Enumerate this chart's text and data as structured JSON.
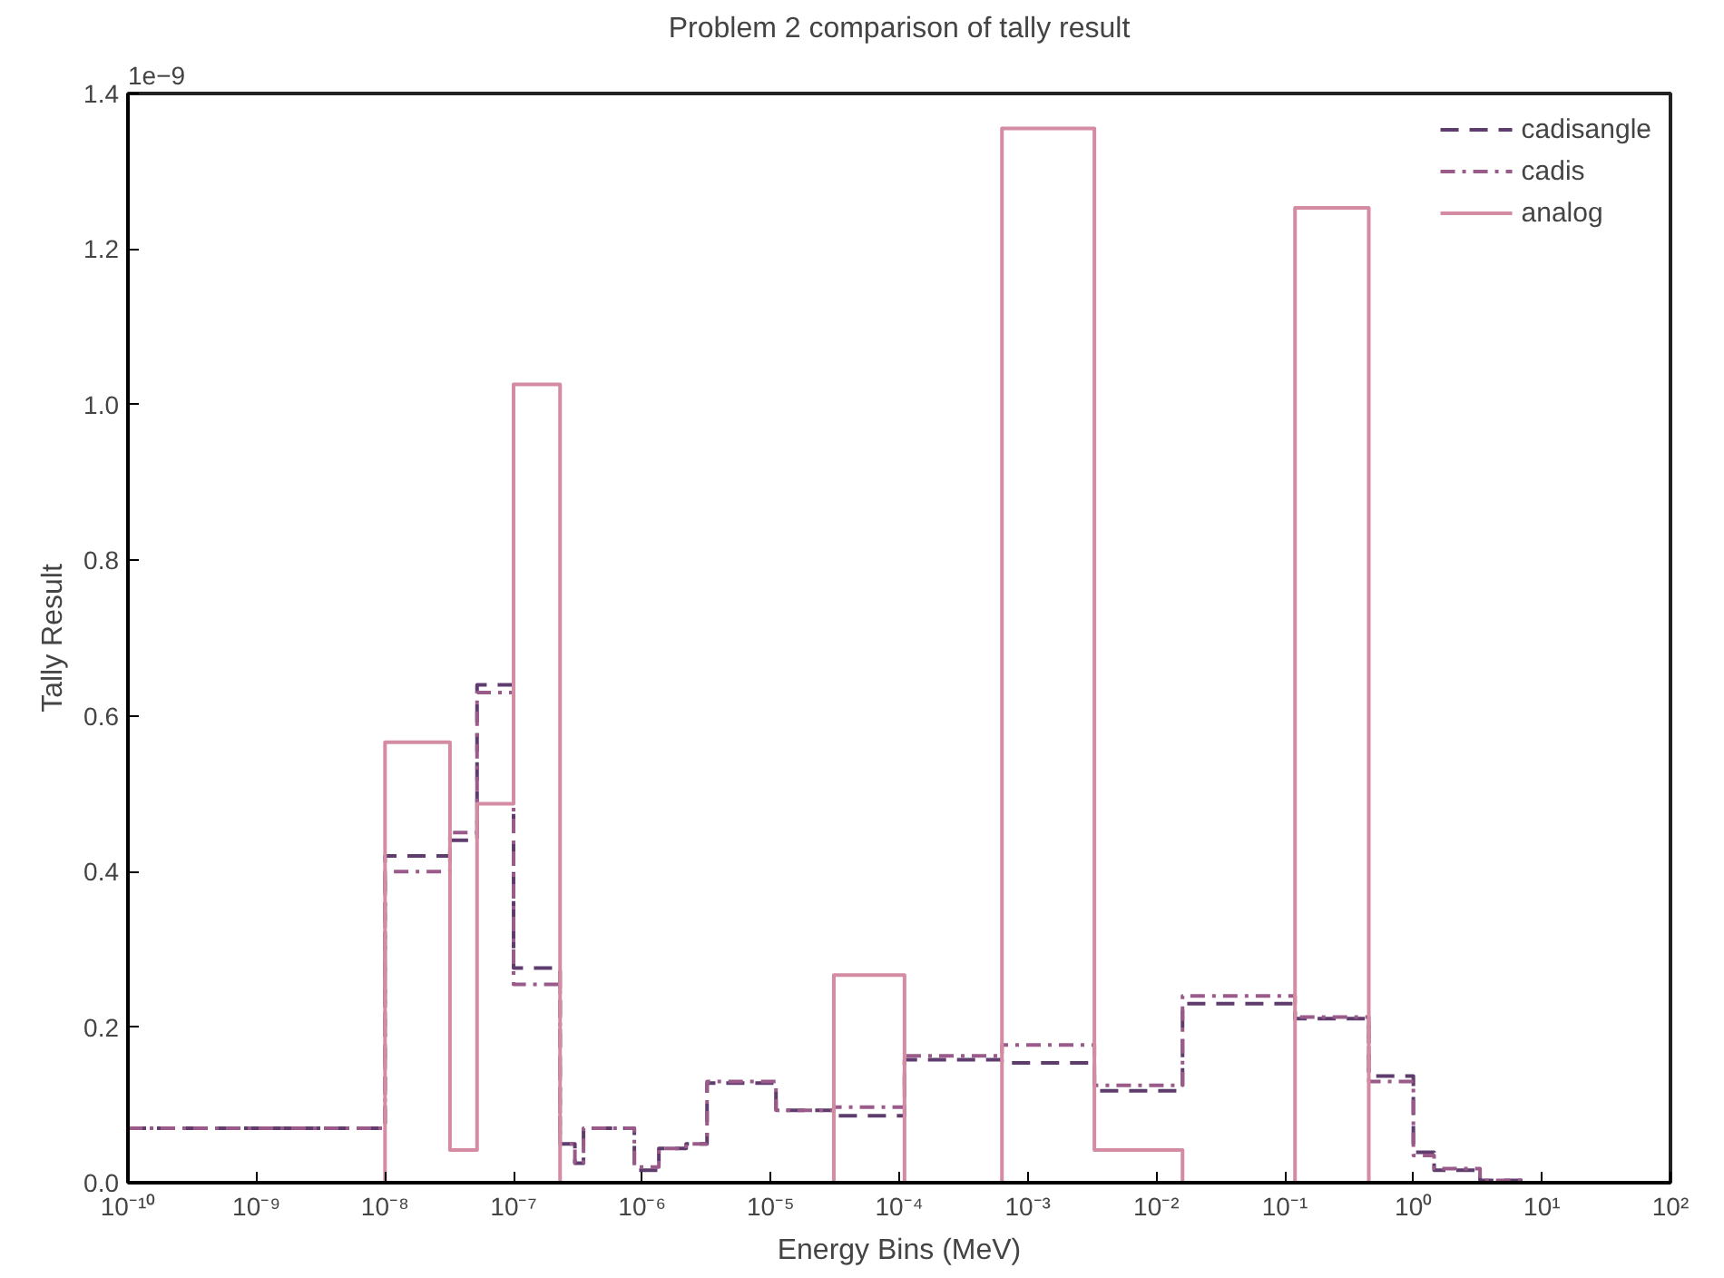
{
  "chart_data": {
    "type": "step",
    "title": "Problem 2 comparison of tally result",
    "xlabel": "Energy Bins (MeV)",
    "ylabel": "Tally Result",
    "annotations": [
      "1e−9"
    ],
    "x": [
      1e-10,
      1e-08,
      3.2e-08,
      5.2e-08,
      1e-07,
      2.3e-07,
      3e-07,
      3.5e-07,
      8.7e-07,
      1.35e-06,
      2.2e-06,
      3.2e-06,
      1.1e-05,
      3.1e-05,
      0.00011,
      0.00063,
      0.0033,
      0.016,
      0.12,
      0.45,
      1.0,
      1.45,
      3.3,
      7.2
    ],
    "series": [
      {
        "name": "cadisangle",
        "line_style": "dashed",
        "color": "#5e3c6e",
        "values": [
          0.07,
          0.42,
          0.44,
          0.64,
          0.276,
          0.05,
          0.025,
          0.07,
          0.016,
          0.044,
          0.05,
          0.128,
          0.093,
          0.086,
          0.158,
          0.154,
          0.118,
          0.23,
          0.211,
          0.137,
          0.039,
          0.016,
          0.003,
          0
        ]
      },
      {
        "name": "cadis",
        "line_style": "dotted",
        "color": "#9a5a8a",
        "values": [
          0.07,
          0.4,
          0.45,
          0.63,
          0.255,
          0.05,
          0.025,
          0.07,
          0.02,
          0.044,
          0.05,
          0.13,
          0.093,
          0.097,
          0.163,
          0.177,
          0.125,
          0.24,
          0.213,
          0.13,
          0.035,
          0.018,
          0.003,
          0
        ]
      },
      {
        "name": "analog",
        "line_style": "solid",
        "color": "#d48ca3",
        "values": [
          0,
          0.566,
          0.042,
          0.487,
          1.026,
          0,
          0,
          0,
          0,
          0,
          0,
          0,
          0,
          0.267,
          0,
          1.355,
          0.042,
          0,
          1.253,
          0,
          0,
          0,
          0,
          0
        ]
      }
    ],
    "log": "x",
    "xlim": [
      1e-10,
      100
    ],
    "xticks": [
      {
        "value": 1e-10,
        "label": "10⁻¹⁰"
      },
      {
        "value": 1e-09,
        "label": "10⁻⁹"
      },
      {
        "value": 1e-08,
        "label": "10⁻⁸"
      },
      {
        "value": 1e-07,
        "label": "10⁻⁷"
      },
      {
        "value": 1e-06,
        "label": "10⁻⁶"
      },
      {
        "value": 1e-05,
        "label": "10⁻⁵"
      },
      {
        "value": 0.0001,
        "label": "10⁻⁴"
      },
      {
        "value": 0.001,
        "label": "10⁻³"
      },
      {
        "value": 0.01,
        "label": "10⁻²"
      },
      {
        "value": 0.1,
        "label": "10⁻¹"
      },
      {
        "value": 1,
        "label": "10⁰"
      },
      {
        "value": 10,
        "label": "10¹"
      },
      {
        "value": 100,
        "label": "10²"
      }
    ],
    "ylim": [
      0,
      1.4
    ],
    "yticks": [
      {
        "value": 0,
        "label": "0.0"
      },
      {
        "value": 0.2,
        "label": "0.2"
      },
      {
        "value": 0.4,
        "label": "0.4"
      },
      {
        "value": 0.6,
        "label": "0.6"
      },
      {
        "value": 0.8,
        "label": "0.8"
      },
      {
        "value": 1.0,
        "label": "1.0"
      },
      {
        "value": 1.2,
        "label": "1.2"
      },
      {
        "value": 1.4,
        "label": "1.4"
      }
    ],
    "grid": false,
    "legend": "top right"
  }
}
